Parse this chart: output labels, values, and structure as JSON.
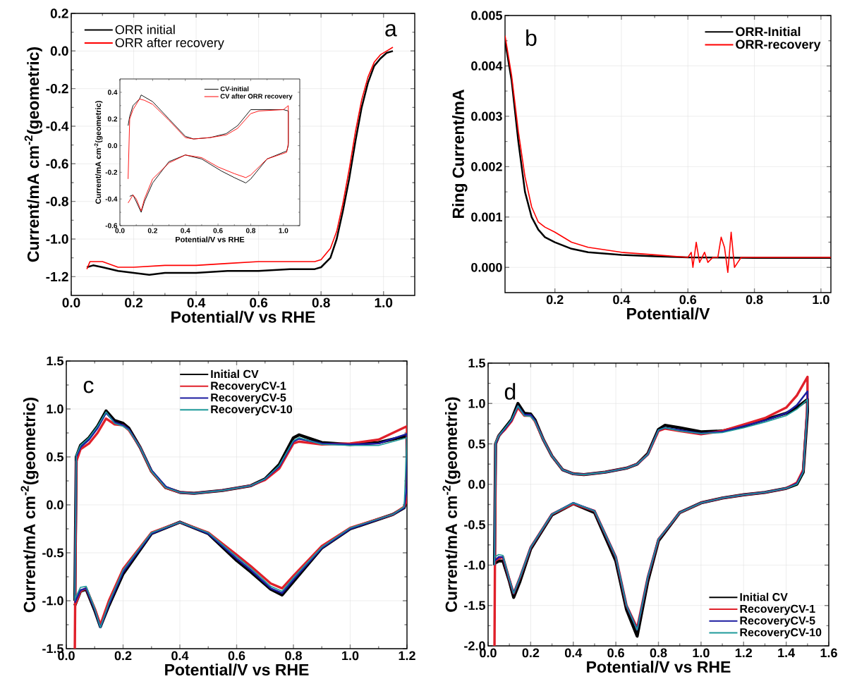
{
  "chart_data": [
    {
      "type": "line",
      "xlabel": "Potential/V vs RHE",
      "ylabel": "Current/mA cm$^{-2}$(geometric)",
      "xlim": [
        0,
        1.1
      ],
      "ylim": [
        -1.3,
        0.2
      ],
      "xticks": [
        {
          "value": 0,
          "label": "0.0"
        },
        {
          "value": 0.2,
          "label": "0.2"
        },
        {
          "value": 0.4,
          "label": "0.4"
        },
        {
          "value": 0.6,
          "label": "0.6"
        },
        {
          "value": 0.8,
          "label": "0.8"
        },
        {
          "value": 1.0,
          "label": "1.0"
        }
      ],
      "yticks": [
        {
          "value": -1.2,
          "label": "-1.2"
        },
        {
          "value": -1.0,
          "label": "-1.0"
        },
        {
          "value": -0.8,
          "label": "-0.8"
        },
        {
          "value": -0.6,
          "label": "-0.6"
        },
        {
          "value": -0.4,
          "label": "-0.4"
        },
        {
          "value": -0.2,
          "label": "-0.2"
        },
        {
          "value": 0,
          "label": "0.0"
        },
        {
          "value": 0.2,
          "label": "0.2"
        }
      ],
      "grid": true,
      "legend": "top left",
      "annotations": [
        "a"
      ],
      "series": [
        {
          "name": "ORR initial",
          "color": "#000000",
          "x": [
            0.05,
            0.07,
            0.1,
            0.15,
            0.2,
            0.25,
            0.3,
            0.4,
            0.5,
            0.6,
            0.7,
            0.78,
            0.8,
            0.83,
            0.85,
            0.87,
            0.89,
            0.91,
            0.93,
            0.95,
            0.97,
            0.99,
            1.01,
            1.03
          ],
          "values": [
            -1.15,
            -1.14,
            -1.15,
            -1.17,
            -1.18,
            -1.19,
            -1.18,
            -1.18,
            -1.17,
            -1.17,
            -1.16,
            -1.16,
            -1.15,
            -1.1,
            -1.0,
            -0.85,
            -0.68,
            -0.48,
            -0.3,
            -0.17,
            -0.08,
            -0.04,
            -0.01,
            0.0
          ]
        },
        {
          "name": "ORR after recovery",
          "color": "#ff0000",
          "x": [
            0.05,
            0.06,
            0.1,
            0.15,
            0.2,
            0.3,
            0.4,
            0.5,
            0.6,
            0.7,
            0.78,
            0.8,
            0.83,
            0.85,
            0.87,
            0.89,
            0.91,
            0.93,
            0.95,
            0.97,
            0.99,
            1.01,
            1.03
          ],
          "values": [
            -1.16,
            -1.12,
            -1.12,
            -1.15,
            -1.15,
            -1.14,
            -1.14,
            -1.13,
            -1.12,
            -1.12,
            -1.12,
            -1.11,
            -1.05,
            -0.96,
            -0.81,
            -0.63,
            -0.43,
            -0.26,
            -0.14,
            -0.06,
            -0.02,
            0.0,
            0.02
          ]
        }
      ]
    },
    {
      "type": "line",
      "xlabel": "Potential/V vs RHE",
      "ylabel": "Current/mA cm$^{-2}$(geometric)",
      "xlim": [
        0,
        1.1
      ],
      "ylim": [
        -0.6,
        0.5
      ],
      "xticks": [
        {
          "value": 0,
          "label": "0.0"
        },
        {
          "value": 0.2,
          "label": "0.2"
        },
        {
          "value": 0.4,
          "label": "0.4"
        },
        {
          "value": 0.6,
          "label": "0.6"
        },
        {
          "value": 0.8,
          "label": "0.8"
        },
        {
          "value": 1.0,
          "label": "1.0"
        }
      ],
      "yticks": [
        {
          "value": -0.6,
          "label": "-0.6"
        },
        {
          "value": -0.4,
          "label": "-0.4"
        },
        {
          "value": -0.2,
          "label": "-0.2"
        },
        {
          "value": 0,
          "label": "0.0"
        },
        {
          "value": 0.2,
          "label": "0.2"
        },
        {
          "value": 0.4,
          "label": "0.4"
        }
      ],
      "legend": "top right",
      "series": [
        {
          "name": "CV-initial",
          "color": "#000000",
          "x": [
            0.05,
            0.06,
            0.08,
            0.12,
            0.13,
            0.2,
            0.3,
            0.4,
            0.45,
            0.55,
            0.65,
            0.72,
            0.8,
            0.85,
            1.0,
            1.03,
            1.03,
            1.02,
            0.9,
            0.8,
            0.77,
            0.7,
            0.62,
            0.5,
            0.4,
            0.3,
            0.2,
            0.15,
            0.13,
            0.1,
            0.08,
            0.06
          ],
          "values": [
            0.15,
            0.22,
            0.3,
            0.35,
            0.38,
            0.33,
            0.2,
            0.07,
            0.05,
            0.06,
            0.09,
            0.15,
            0.27,
            0.27,
            0.27,
            0.26,
            0.0,
            -0.04,
            -0.1,
            -0.25,
            -0.28,
            -0.24,
            -0.19,
            -0.1,
            -0.07,
            -0.12,
            -0.28,
            -0.42,
            -0.5,
            -0.42,
            -0.37,
            -0.38
          ]
        },
        {
          "name": "CV after ORR recovery",
          "color": "#ff0000",
          "x": [
            0.05,
            0.06,
            0.08,
            0.12,
            0.15,
            0.2,
            0.3,
            0.4,
            0.45,
            0.55,
            0.65,
            0.72,
            0.8,
            0.85,
            1.0,
            1.03,
            1.03,
            1.02,
            0.9,
            0.8,
            0.77,
            0.7,
            0.6,
            0.5,
            0.4,
            0.3,
            0.2,
            0.15,
            0.13,
            0.1,
            0.08,
            0.05
          ],
          "values": [
            -0.25,
            0.2,
            0.27,
            0.35,
            0.34,
            0.31,
            0.19,
            0.06,
            0.05,
            0.06,
            0.08,
            0.13,
            0.24,
            0.26,
            0.27,
            0.3,
            0.02,
            -0.05,
            -0.1,
            -0.22,
            -0.24,
            -0.21,
            -0.16,
            -0.09,
            -0.07,
            -0.13,
            -0.25,
            -0.4,
            -0.49,
            -0.4,
            -0.37,
            -0.43
          ]
        }
      ]
    },
    {
      "type": "line",
      "xlabel": "Potential/V",
      "ylabel": "Ring Current/mA",
      "xlim": [
        0.05,
        1.03
      ],
      "ylim": [
        -0.0005,
        0.005
      ],
      "xticks": [
        {
          "value": 0.2,
          "label": "0.2"
        },
        {
          "value": 0.4,
          "label": "0.4"
        },
        {
          "value": 0.6,
          "label": "0.6"
        },
        {
          "value": 0.8,
          "label": "0.8"
        },
        {
          "value": 1.0,
          "label": "1.0"
        }
      ],
      "yticks": [
        {
          "value": 0,
          "label": "0.000"
        },
        {
          "value": 0.001,
          "label": "0.001"
        },
        {
          "value": 0.002,
          "label": "0.002"
        },
        {
          "value": 0.003,
          "label": "0.003"
        },
        {
          "value": 0.004,
          "label": "0.004"
        },
        {
          "value": 0.005,
          "label": "0.005"
        }
      ],
      "grid": true,
      "legend": "top right",
      "annotations": [
        "b"
      ],
      "series": [
        {
          "name": "ORR-Initial",
          "color": "#000000",
          "x": [
            0.05,
            0.07,
            0.09,
            0.11,
            0.13,
            0.15,
            0.17,
            0.2,
            0.25,
            0.3,
            0.4,
            0.5,
            0.6,
            0.8,
            1.03
          ],
          "values": [
            0.0045,
            0.0037,
            0.0025,
            0.0015,
            0.001,
            0.00075,
            0.0006,
            0.0005,
            0.00037,
            0.0003,
            0.00025,
            0.00022,
            0.0002,
            0.00019,
            0.00019
          ]
        },
        {
          "name": "ORR-recovery",
          "color": "#ff0000",
          "x": [
            0.05,
            0.07,
            0.09,
            0.11,
            0.13,
            0.15,
            0.17,
            0.2,
            0.25,
            0.3,
            0.4,
            0.5,
            0.6,
            0.61,
            0.615,
            0.625,
            0.635,
            0.65,
            0.66,
            0.675,
            0.69,
            0.7,
            0.71,
            0.72,
            0.73,
            0.74,
            0.75,
            0.76,
            0.8,
            1.03
          ],
          "values": [
            0.0046,
            0.0038,
            0.0027,
            0.0018,
            0.0012,
            0.0009,
            0.0008,
            0.0007,
            0.0005,
            0.0004,
            0.0003,
            0.00025,
            0.0002,
            0.0003,
            0.0,
            0.0005,
            0.0001,
            0.0003,
            0.0001,
            0.0002,
            0.0002,
            0.0006,
            0.0004,
            -0.0001,
            0.0007,
            0.0,
            0.0001,
            0.0002,
            0.0002,
            0.0002
          ]
        }
      ]
    },
    {
      "type": "line",
      "xlabel": "Potential/V vs RHE",
      "ylabel": "Current/mA cm$^{-2}$(geometric)",
      "xlim": [
        0,
        1.2
      ],
      "ylim": [
        -1.5,
        1.5
      ],
      "xticks": [
        {
          "value": 0,
          "label": "0.0"
        },
        {
          "value": 0.2,
          "label": "0.2"
        },
        {
          "value": 0.4,
          "label": "0.4"
        },
        {
          "value": 0.6,
          "label": "0.6"
        },
        {
          "value": 0.8,
          "label": "0.8"
        },
        {
          "value": 1.0,
          "label": "1.0"
        },
        {
          "value": 1.2,
          "label": "1.2"
        }
      ],
      "yticks": [
        {
          "value": -1.5,
          "label": "-1.5"
        },
        {
          "value": -1.0,
          "label": "-1.0"
        },
        {
          "value": -0.5,
          "label": "-0.5"
        },
        {
          "value": 0,
          "label": "0.0"
        },
        {
          "value": 0.5,
          "label": "0.5"
        },
        {
          "value": 1.0,
          "label": "1.0"
        },
        {
          "value": 1.5,
          "label": "1.5"
        }
      ],
      "grid": true,
      "legend": "top",
      "annotations": [
        "c"
      ],
      "x": [
        0.03,
        0.035,
        0.05,
        0.08,
        0.11,
        0.14,
        0.17,
        0.2,
        0.22,
        0.26,
        0.3,
        0.35,
        0.4,
        0.45,
        0.55,
        0.65,
        0.7,
        0.75,
        0.8,
        0.82,
        0.9,
        1.0,
        1.1,
        1.2,
        1.2,
        1.19,
        1.15,
        1.0,
        0.9,
        0.8,
        0.76,
        0.72,
        0.65,
        0.6,
        0.5,
        0.4,
        0.3,
        0.2,
        0.15,
        0.12,
        0.1,
        0.07,
        0.05,
        0.03
      ],
      "series": [
        {
          "name": "Initial CV",
          "color": "#000000",
          "values": [
            -1.0,
            0.5,
            0.62,
            0.7,
            0.82,
            0.98,
            0.88,
            0.85,
            0.8,
            0.6,
            0.35,
            0.18,
            0.13,
            0.12,
            0.15,
            0.2,
            0.27,
            0.42,
            0.7,
            0.73,
            0.65,
            0.63,
            0.65,
            0.72,
            0.05,
            -0.03,
            -0.1,
            -0.25,
            -0.45,
            -0.8,
            -0.94,
            -0.88,
            -0.7,
            -0.58,
            -0.3,
            -0.18,
            -0.3,
            -0.72,
            -1.05,
            -1.27,
            -1.1,
            -0.88,
            -0.9,
            -1.05
          ]
        },
        {
          "name": "RecoveryCV-1",
          "color": "#e0202a",
          "values": [
            -1.5,
            0.45,
            0.58,
            0.64,
            0.75,
            0.9,
            0.84,
            0.83,
            0.78,
            0.6,
            0.35,
            0.18,
            0.13,
            0.12,
            0.15,
            0.2,
            0.26,
            0.38,
            0.64,
            0.66,
            0.63,
            0.64,
            0.68,
            0.82,
            0.05,
            -0.02,
            -0.1,
            -0.24,
            -0.43,
            -0.74,
            -0.87,
            -0.82,
            -0.64,
            -0.52,
            -0.29,
            -0.18,
            -0.29,
            -0.67,
            -1.0,
            -1.25,
            -1.08,
            -0.87,
            -0.9,
            -1.05
          ]
        },
        {
          "name": "RecoveryCV-5",
          "color": "#1c1ca0",
          "values": [
            -1.0,
            0.5,
            0.6,
            0.68,
            0.8,
            0.96,
            0.86,
            0.83,
            0.79,
            0.6,
            0.36,
            0.19,
            0.13,
            0.12,
            0.15,
            0.2,
            0.27,
            0.4,
            0.66,
            0.69,
            0.64,
            0.63,
            0.64,
            0.74,
            0.2,
            -0.03,
            -0.1,
            -0.25,
            -0.45,
            -0.78,
            -0.92,
            -0.87,
            -0.68,
            -0.56,
            -0.3,
            -0.18,
            -0.3,
            -0.7,
            -1.04,
            -1.28,
            -1.09,
            -0.87,
            -0.89,
            -1.02
          ]
        },
        {
          "name": "RecoveryCV-10",
          "color": "#1e9a9a",
          "values": [
            -1.0,
            0.52,
            0.62,
            0.7,
            0.82,
            0.97,
            0.85,
            0.82,
            0.78,
            0.6,
            0.35,
            0.18,
            0.13,
            0.12,
            0.15,
            0.2,
            0.27,
            0.41,
            0.67,
            0.7,
            0.63,
            0.62,
            0.62,
            0.7,
            0.7,
            -0.02,
            -0.1,
            -0.24,
            -0.44,
            -0.76,
            -0.9,
            -0.85,
            -0.66,
            -0.54,
            -0.29,
            -0.18,
            -0.29,
            -0.68,
            -1.02,
            -1.28,
            -1.08,
            -0.85,
            -0.86,
            -0.98
          ]
        }
      ]
    },
    {
      "type": "line",
      "xlabel": "Potential/V vs RHE",
      "ylabel": "Current/mA cm$^{-2}$(geometric)",
      "xlim": [
        0,
        1.6
      ],
      "ylim": [
        -2.0,
        1.5
      ],
      "xticks": [
        {
          "value": 0,
          "label": "0.0"
        },
        {
          "value": 0.2,
          "label": "0.2"
        },
        {
          "value": 0.4,
          "label": "0.4"
        },
        {
          "value": 0.6,
          "label": "0.6"
        },
        {
          "value": 0.8,
          "label": "0.8"
        },
        {
          "value": 1.0,
          "label": "1.0"
        },
        {
          "value": 1.2,
          "label": "1.2"
        },
        {
          "value": 1.4,
          "label": "1.4"
        },
        {
          "value": 1.6,
          "label": "1.6"
        }
      ],
      "yticks": [
        {
          "value": -2.0,
          "label": "-2.0"
        },
        {
          "value": -1.5,
          "label": "-1.5"
        },
        {
          "value": -1.0,
          "label": "-1.0"
        },
        {
          "value": -0.5,
          "label": "-0.5"
        },
        {
          "value": 0,
          "label": "0.0"
        },
        {
          "value": 0.5,
          "label": "0.5"
        },
        {
          "value": 1.0,
          "label": "1.0"
        },
        {
          "value": 1.5,
          "label": "1.5"
        }
      ],
      "grid": true,
      "legend": "bottom right",
      "annotations": [
        "d"
      ],
      "x": [
        0.03,
        0.035,
        0.05,
        0.08,
        0.11,
        0.14,
        0.17,
        0.2,
        0.22,
        0.26,
        0.3,
        0.35,
        0.4,
        0.45,
        0.55,
        0.65,
        0.7,
        0.75,
        0.8,
        0.83,
        0.9,
        1.0,
        1.1,
        1.2,
        1.3,
        1.4,
        1.45,
        1.5,
        1.5,
        1.48,
        1.45,
        1.4,
        1.3,
        1.2,
        1.1,
        1.0,
        0.9,
        0.8,
        0.75,
        0.7,
        0.65,
        0.6,
        0.5,
        0.4,
        0.3,
        0.2,
        0.15,
        0.12,
        0.1,
        0.07,
        0.05,
        0.03
      ],
      "series": [
        {
          "name": "Initial CV",
          "color": "#000000",
          "values": [
            -1.0,
            0.5,
            0.6,
            0.7,
            0.8,
            1.0,
            0.88,
            0.87,
            0.8,
            0.55,
            0.35,
            0.18,
            0.13,
            0.12,
            0.15,
            0.2,
            0.25,
            0.38,
            0.68,
            0.73,
            0.7,
            0.65,
            0.66,
            0.72,
            0.8,
            0.88,
            0.95,
            1.05,
            0.9,
            0.15,
            0.0,
            -0.05,
            -0.1,
            -0.13,
            -0.17,
            -0.23,
            -0.35,
            -0.7,
            -1.2,
            -1.88,
            -1.55,
            -0.95,
            -0.35,
            -0.24,
            -0.38,
            -0.8,
            -1.2,
            -1.4,
            -1.2,
            -0.95,
            -0.95,
            -0.98
          ]
        },
        {
          "name": "RecoveryCV-1",
          "color": "#e0202a",
          "values": [
            -2.0,
            0.5,
            0.6,
            0.68,
            0.78,
            0.95,
            0.85,
            0.85,
            0.78,
            0.55,
            0.35,
            0.18,
            0.13,
            0.12,
            0.15,
            0.2,
            0.25,
            0.37,
            0.66,
            0.69,
            0.66,
            0.62,
            0.66,
            0.74,
            0.82,
            0.95,
            1.1,
            1.33,
            1.0,
            0.18,
            0.02,
            -0.05,
            -0.1,
            -0.13,
            -0.17,
            -0.23,
            -0.35,
            -0.68,
            -1.15,
            -1.78,
            -1.5,
            -0.9,
            -0.33,
            -0.24,
            -0.37,
            -0.78,
            -1.15,
            -1.35,
            -1.18,
            -0.9,
            -0.92,
            -0.95
          ]
        },
        {
          "name": "RecoveryCV-5",
          "color": "#1c1ca0",
          "values": [
            -1.0,
            0.5,
            0.6,
            0.69,
            0.79,
            0.97,
            0.86,
            0.86,
            0.79,
            0.55,
            0.35,
            0.18,
            0.13,
            0.12,
            0.15,
            0.2,
            0.25,
            0.37,
            0.67,
            0.7,
            0.67,
            0.63,
            0.65,
            0.72,
            0.79,
            0.88,
            0.98,
            1.15,
            0.95,
            0.16,
            0.01,
            -0.05,
            -0.1,
            -0.13,
            -0.17,
            -0.23,
            -0.35,
            -0.68,
            -1.15,
            -1.8,
            -1.5,
            -0.9,
            -0.33,
            -0.23,
            -0.37,
            -0.78,
            -1.15,
            -1.35,
            -1.18,
            -0.9,
            -0.9,
            -0.95
          ]
        },
        {
          "name": "RecoveryCV-10",
          "color": "#1e9a9a",
          "values": [
            -1.0,
            0.52,
            0.6,
            0.7,
            0.8,
            0.97,
            0.85,
            0.84,
            0.78,
            0.55,
            0.35,
            0.18,
            0.13,
            0.12,
            0.15,
            0.2,
            0.25,
            0.37,
            0.67,
            0.7,
            0.66,
            0.63,
            0.64,
            0.7,
            0.77,
            0.85,
            0.93,
            1.05,
            0.95,
            0.15,
            0.0,
            -0.05,
            -0.1,
            -0.13,
            -0.17,
            -0.23,
            -0.35,
            -0.68,
            -1.15,
            -1.8,
            -1.5,
            -0.9,
            -0.33,
            -0.23,
            -0.37,
            -0.78,
            -1.15,
            -1.35,
            -1.18,
            -0.88,
            -0.87,
            -0.9
          ]
        }
      ]
    }
  ]
}
